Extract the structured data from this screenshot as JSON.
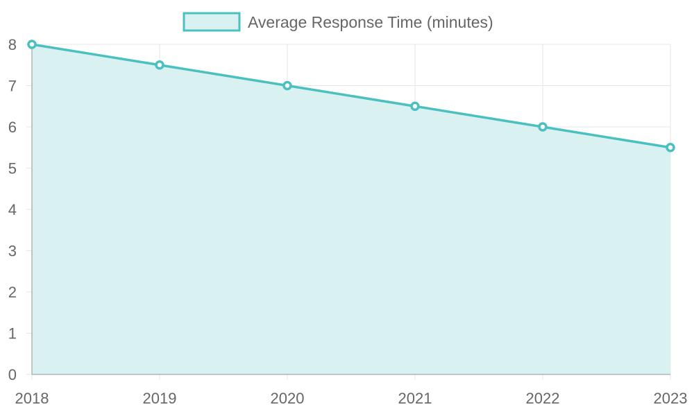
{
  "chart_data": {
    "type": "area",
    "categories": [
      "2018",
      "2019",
      "2020",
      "2021",
      "2022",
      "2023"
    ],
    "series": [
      {
        "name": "Average Response Time (minutes)",
        "values": [
          8,
          7.5,
          7,
          6.5,
          6,
          5.5
        ]
      }
    ],
    "ylim": [
      0,
      8
    ],
    "yticks": [
      0,
      1,
      2,
      3,
      4,
      5,
      6,
      7,
      8
    ],
    "grid": true,
    "legend": "top-center",
    "colors": {
      "line": "#4bc0c0",
      "fill": "#daf1f1",
      "grid": "#e5e5e5",
      "axis": "#b3b3b3",
      "text": "#666666"
    }
  }
}
